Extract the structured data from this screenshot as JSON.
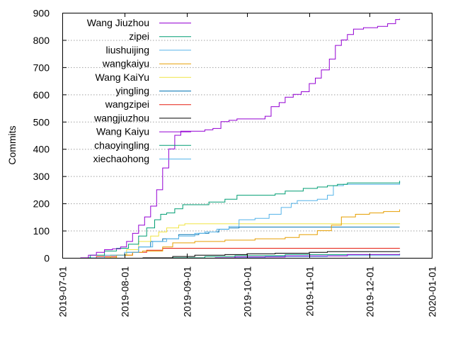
{
  "chart_data": {
    "type": "line",
    "title": "",
    "xlabel": "",
    "ylabel": "Commits",
    "x_type": "date",
    "xlim": [
      "2019-07-01",
      "2020-01-01"
    ],
    "ylim": [
      0,
      900
    ],
    "yticks": [
      0,
      100,
      200,
      300,
      400,
      500,
      600,
      700,
      800,
      900
    ],
    "xticks": [
      "2019-07-01",
      "2019-08-01",
      "2019-09-01",
      "2019-10-01",
      "2019-11-01",
      "2019-12-01",
      "2020-01-01"
    ],
    "grid": "horizontal",
    "legend_position": "top-left",
    "series": [
      {
        "name": "Wang Jiuzhou",
        "color": "#9400d3",
        "points": [
          [
            "2019-07-10",
            0
          ],
          [
            "2019-07-14",
            10
          ],
          [
            "2019-07-18",
            20
          ],
          [
            "2019-07-22",
            30
          ],
          [
            "2019-07-26",
            33
          ],
          [
            "2019-07-30",
            40
          ],
          [
            "2019-08-02",
            60
          ],
          [
            "2019-08-05",
            90
          ],
          [
            "2019-08-08",
            120
          ],
          [
            "2019-08-11",
            150
          ],
          [
            "2019-08-14",
            190
          ],
          [
            "2019-08-17",
            250
          ],
          [
            "2019-08-20",
            330
          ],
          [
            "2019-08-23",
            400
          ],
          [
            "2019-08-26",
            450
          ],
          [
            "2019-08-29",
            465
          ],
          [
            "2019-09-05",
            465
          ],
          [
            "2019-09-10",
            470
          ],
          [
            "2019-09-14",
            475
          ],
          [
            "2019-09-18",
            500
          ],
          [
            "2019-09-22",
            505
          ],
          [
            "2019-09-26",
            510
          ],
          [
            "2019-10-05",
            510
          ],
          [
            "2019-10-10",
            520
          ],
          [
            "2019-10-13",
            555
          ],
          [
            "2019-10-17",
            570
          ],
          [
            "2019-10-20",
            590
          ],
          [
            "2019-10-24",
            600
          ],
          [
            "2019-10-28",
            610
          ],
          [
            "2019-11-01",
            640
          ],
          [
            "2019-11-04",
            660
          ],
          [
            "2019-11-07",
            690
          ],
          [
            "2019-11-11",
            730
          ],
          [
            "2019-11-14",
            780
          ],
          [
            "2019-11-17",
            800
          ],
          [
            "2019-11-20",
            820
          ],
          [
            "2019-11-23",
            840
          ],
          [
            "2019-11-28",
            845
          ],
          [
            "2019-12-05",
            850
          ],
          [
            "2019-12-10",
            860
          ],
          [
            "2019-12-14",
            875
          ],
          [
            "2019-12-16",
            878
          ]
        ]
      },
      {
        "name": "zipei",
        "color": "#009e73",
        "points": [
          [
            "2019-07-10",
            0
          ],
          [
            "2019-07-15",
            10
          ],
          [
            "2019-07-22",
            25
          ],
          [
            "2019-07-28",
            35
          ],
          [
            "2019-08-03",
            50
          ],
          [
            "2019-08-08",
            80
          ],
          [
            "2019-08-12",
            110
          ],
          [
            "2019-08-16",
            140
          ],
          [
            "2019-08-19",
            160
          ],
          [
            "2019-08-22",
            165
          ],
          [
            "2019-08-26",
            180
          ],
          [
            "2019-08-30",
            195
          ],
          [
            "2019-09-10",
            195
          ],
          [
            "2019-09-12",
            205
          ],
          [
            "2019-09-20",
            215
          ],
          [
            "2019-09-26",
            230
          ],
          [
            "2019-10-15",
            235
          ],
          [
            "2019-10-20",
            245
          ],
          [
            "2019-10-29",
            255
          ],
          [
            "2019-11-05",
            260
          ],
          [
            "2019-11-10",
            265
          ],
          [
            "2019-11-15",
            270
          ],
          [
            "2019-11-20",
            275
          ],
          [
            "2019-12-16",
            283
          ]
        ]
      },
      {
        "name": "liushuijing",
        "color": "#56b4e9",
        "points": [
          [
            "2019-07-15",
            0
          ],
          [
            "2019-07-22",
            10
          ],
          [
            "2019-08-01",
            20
          ],
          [
            "2019-08-08",
            40
          ],
          [
            "2019-08-15",
            60
          ],
          [
            "2019-08-22",
            70
          ],
          [
            "2019-08-28",
            80
          ],
          [
            "2019-09-05",
            90
          ],
          [
            "2019-09-10",
            95
          ],
          [
            "2019-09-16",
            105
          ],
          [
            "2019-09-22",
            115
          ],
          [
            "2019-09-27",
            140
          ],
          [
            "2019-10-05",
            145
          ],
          [
            "2019-10-12",
            160
          ],
          [
            "2019-10-18",
            185
          ],
          [
            "2019-10-23",
            200
          ],
          [
            "2019-10-26",
            210
          ],
          [
            "2019-11-05",
            215
          ],
          [
            "2019-11-10",
            230
          ],
          [
            "2019-11-13",
            265
          ],
          [
            "2019-11-18",
            270
          ],
          [
            "2019-12-16",
            280
          ]
        ]
      },
      {
        "name": "wangkaiyu",
        "color": "#e69f00",
        "points": [
          [
            "2019-07-20",
            0
          ],
          [
            "2019-07-28",
            10
          ],
          [
            "2019-08-05",
            20
          ],
          [
            "2019-08-10",
            25
          ],
          [
            "2019-08-20",
            40
          ],
          [
            "2019-08-25",
            55
          ],
          [
            "2019-09-05",
            60
          ],
          [
            "2019-09-20",
            65
          ],
          [
            "2019-10-05",
            70
          ],
          [
            "2019-10-20",
            75
          ],
          [
            "2019-10-27",
            85
          ],
          [
            "2019-11-05",
            100
          ],
          [
            "2019-11-12",
            120
          ],
          [
            "2019-11-17",
            150
          ],
          [
            "2019-11-24",
            160
          ],
          [
            "2019-12-01",
            165
          ],
          [
            "2019-12-08",
            170
          ],
          [
            "2019-12-16",
            178
          ]
        ]
      },
      {
        "name": "Wang KaiYu",
        "color": "#f0e442",
        "points": [
          [
            "2019-07-15",
            0
          ],
          [
            "2019-07-25",
            10
          ],
          [
            "2019-08-02",
            30
          ],
          [
            "2019-08-08",
            60
          ],
          [
            "2019-08-14",
            80
          ],
          [
            "2019-08-18",
            95
          ],
          [
            "2019-08-22",
            110
          ],
          [
            "2019-08-28",
            120
          ],
          [
            "2019-08-31",
            125
          ],
          [
            "2019-12-16",
            127
          ]
        ]
      },
      {
        "name": "yingling",
        "color": "#0072b2",
        "points": [
          [
            "2019-07-15",
            0
          ],
          [
            "2019-07-25",
            10
          ],
          [
            "2019-08-02",
            20
          ],
          [
            "2019-08-08",
            40
          ],
          [
            "2019-08-14",
            60
          ],
          [
            "2019-08-20",
            70
          ],
          [
            "2019-08-28",
            85
          ],
          [
            "2019-09-07",
            90
          ],
          [
            "2019-09-12",
            95
          ],
          [
            "2019-09-17",
            105
          ],
          [
            "2019-09-22",
            110
          ],
          [
            "2019-09-27",
            113
          ],
          [
            "2019-12-16",
            113
          ]
        ]
      },
      {
        "name": "wangzipei",
        "color": "#e51e10",
        "points": [
          [
            "2019-07-10",
            0
          ],
          [
            "2019-07-18",
            5
          ],
          [
            "2019-07-28",
            10
          ],
          [
            "2019-08-05",
            20
          ],
          [
            "2019-08-12",
            28
          ],
          [
            "2019-08-20",
            35
          ],
          [
            "2019-12-16",
            36
          ]
        ]
      },
      {
        "name": "wangjiuzhou",
        "color": "#000000",
        "points": [
          [
            "2019-08-10",
            0
          ],
          [
            "2019-08-25",
            5
          ],
          [
            "2019-09-05",
            10
          ],
          [
            "2019-09-20",
            12
          ],
          [
            "2019-10-01",
            15
          ],
          [
            "2019-10-15",
            17
          ],
          [
            "2019-11-01",
            20
          ],
          [
            "2019-11-10",
            23
          ],
          [
            "2019-12-16",
            24
          ]
        ]
      },
      {
        "name": "Wang Kaiyu",
        "color": "#9400d3",
        "points": [
          [
            "2019-09-15",
            0
          ],
          [
            "2019-09-25",
            3
          ],
          [
            "2019-10-20",
            7
          ],
          [
            "2019-11-20",
            12
          ],
          [
            "2019-12-16",
            14
          ]
        ]
      },
      {
        "name": "chaoyingling",
        "color": "#009e73",
        "points": [
          [
            "2019-08-15",
            0
          ],
          [
            "2019-09-10",
            5
          ],
          [
            "2019-09-25",
            8
          ],
          [
            "2019-10-20",
            12
          ],
          [
            "2019-12-16",
            15
          ]
        ]
      },
      {
        "name": "xiechaohong",
        "color": "#56b4e9",
        "points": [
          [
            "2019-09-25",
            0
          ],
          [
            "2019-10-10",
            5
          ],
          [
            "2019-11-10",
            8
          ],
          [
            "2019-12-16",
            10
          ]
        ]
      }
    ]
  }
}
